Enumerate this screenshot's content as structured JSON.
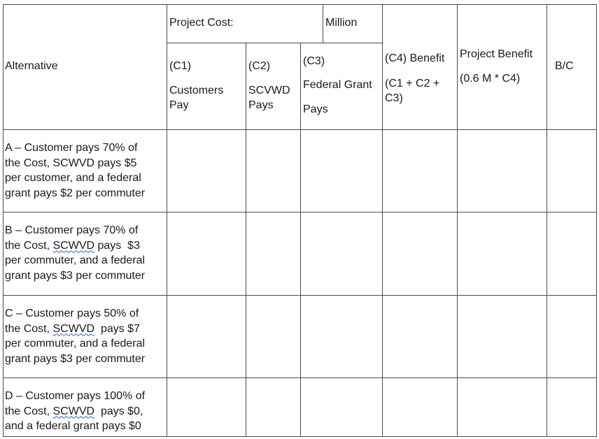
{
  "header": {
    "alternative_label": "Alternative",
    "project_cost_label": "Project Cost:",
    "million_label": "Million",
    "c1_code": "(C1)",
    "c1_label_line1": "Customers",
    "c1_label_line2": "Pay",
    "c2_code": "(C2)",
    "c2_label_line1": "SCVWD",
    "c2_label_line2": "Pays",
    "c3_code": "(C3)",
    "c3_label_line1": "Federal Grant",
    "c3_label_line2": "Pays",
    "c4_label": "(C4) Benefit",
    "c4_formula_line1": "(C1 + C2 +",
    "c4_formula_line2": "C3)",
    "project_benefit_label": "Project Benefit",
    "project_benefit_formula": "(0.6 M * C4)",
    "bc_label": "B/C"
  },
  "rows": [
    {
      "line1": "A – Customer pays 70% of",
      "line2": "the Cost, SCWVD pays $5",
      "line3": "per customer, and a federal",
      "line4": "grant pays $2 per commuter"
    },
    {
      "line1": "B – Customer pays 70% of",
      "line2_pre": "the Cost, ",
      "line2_flag": "SCWVD",
      "line2_post": " pays  $3",
      "line3": "per commuter, and a federal",
      "line4": "grant pays $3 per commuter"
    },
    {
      "line1": "C – Customer pays 50% of",
      "line2_pre": "the Cost, ",
      "line2_flag": "SCWVD",
      "line2_post": "  pays $7",
      "line3": "per commuter, and a federal",
      "line4": "grant pays $3 per commuter"
    },
    {
      "line1": "D – Customer pays 100% of",
      "line2_pre": "the Cost, ",
      "line2_flag": "SCWVD",
      "line2_post": "  pays $0,",
      "line3": "and a federal grant pays $0"
    }
  ]
}
